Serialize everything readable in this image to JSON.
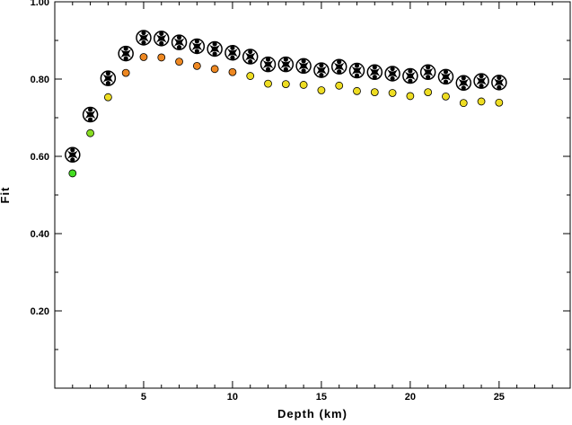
{
  "chart_data": {
    "type": "scatter",
    "title": "",
    "xlabel": "Depth (km)",
    "ylabel": "Fit",
    "xlim": [
      0,
      29
    ],
    "ylim": [
      0.0,
      1.0
    ],
    "xticks": [
      {
        "value": 5,
        "label": "5"
      },
      {
        "value": 10,
        "label": "10"
      },
      {
        "value": 15,
        "label": "15"
      },
      {
        "value": 20,
        "label": "20"
      },
      {
        "value": 25,
        "label": "25"
      }
    ],
    "yticks": [
      {
        "value": 0.2,
        "label": "0.20"
      },
      {
        "value": 0.4,
        "label": "0.40"
      },
      {
        "value": 0.6,
        "label": "0.60"
      },
      {
        "value": 0.8,
        "label": "0.80"
      },
      {
        "value": 1.0,
        "label": "1.00"
      }
    ],
    "grid": false,
    "series": [
      {
        "marker": "beachball",
        "x": [
          1,
          2,
          3,
          4,
          5,
          6,
          7,
          8,
          9,
          10,
          11,
          12,
          13,
          14,
          15,
          16,
          17,
          18,
          19,
          20,
          21,
          22,
          23,
          24,
          25
        ],
        "y": [
          0.604,
          0.708,
          0.802,
          0.866,
          0.907,
          0.905,
          0.895,
          0.885,
          0.878,
          0.868,
          0.858,
          0.838,
          0.838,
          0.834,
          0.823,
          0.832,
          0.822,
          0.818,
          0.814,
          0.808,
          0.818,
          0.806,
          0.79,
          0.795,
          0.791
        ]
      },
      {
        "marker": "circle",
        "x": [
          1,
          2,
          3,
          4,
          5,
          6,
          7,
          8,
          9,
          10,
          11,
          12,
          13,
          14,
          15,
          16,
          17,
          18,
          19,
          20,
          21,
          22,
          23,
          24,
          25
        ],
        "y": [
          0.556,
          0.66,
          0.753,
          0.816,
          0.857,
          0.856,
          0.845,
          0.834,
          0.826,
          0.818,
          0.808,
          0.788,
          0.787,
          0.785,
          0.771,
          0.783,
          0.769,
          0.766,
          0.764,
          0.756,
          0.766,
          0.755,
          0.738,
          0.742,
          0.739
        ],
        "colors": [
          "#44dd22",
          "#88dd22",
          "#eedd22",
          "#ee8822",
          "#ee8822",
          "#ee8822",
          "#ee8822",
          "#ee8822",
          "#ee8822",
          "#ee8822",
          "#eedd22",
          "#eedd22",
          "#eedd22",
          "#eedd22",
          "#eedd22",
          "#eedd22",
          "#eedd22",
          "#eedd22",
          "#eedd22",
          "#eedd22",
          "#eedd22",
          "#eedd22",
          "#eedd22",
          "#eedd22",
          "#eedd22"
        ]
      }
    ]
  }
}
